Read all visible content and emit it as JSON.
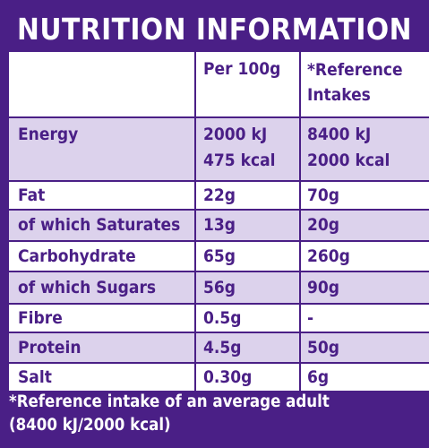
{
  "title": "NUTRITION INFORMATION",
  "columns": {
    "per100g": "Per 100g",
    "ri_line1": "*Reference",
    "ri_line2": "Intakes"
  },
  "rows": [
    {
      "label": "Energy",
      "per100g": "2000 kJ",
      "per100g_2": "475 kcal",
      "ri": "8400 kJ",
      "ri_2": "2000 kcal"
    },
    {
      "label": "Fat",
      "per100g": "22g",
      "ri": "70g"
    },
    {
      "label": "of which Saturates",
      "per100g": "13g",
      "ri": "20g"
    },
    {
      "label": "Carbohydrate",
      "per100g": "65g",
      "ri": "260g"
    },
    {
      "label": "of which Sugars",
      "per100g": "56g",
      "ri": "90g"
    },
    {
      "label": "Fibre",
      "per100g": "0.5g",
      "ri": "-"
    },
    {
      "label": "Protein",
      "per100g": "4.5g",
      "ri": "50g"
    },
    {
      "label": "Salt",
      "per100g": "0.30g",
      "ri": "6g"
    }
  ],
  "footnote": {
    "line1": "*Reference intake of an average adult",
    "line2": "(8400 kJ/2000 kcal)"
  }
}
